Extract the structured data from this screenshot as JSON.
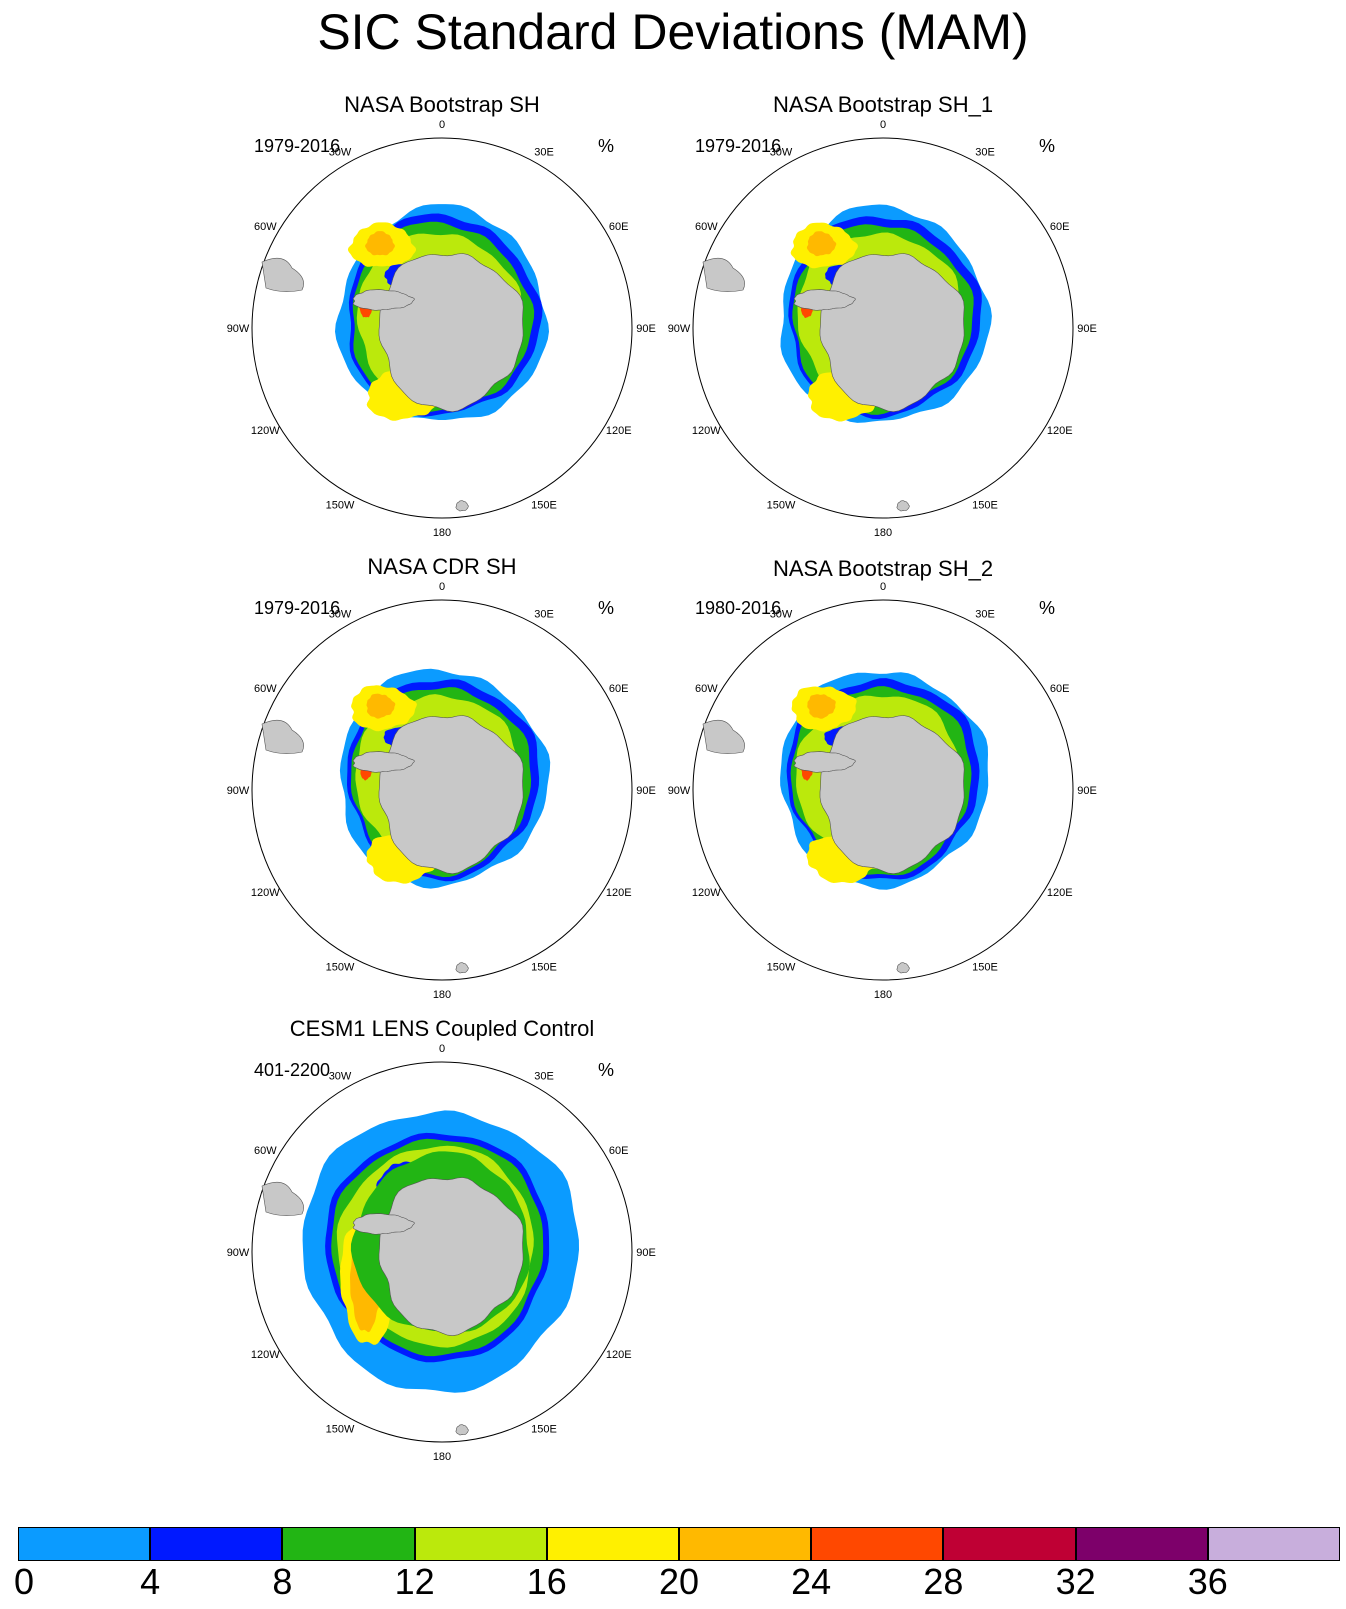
{
  "title": "SIC Standard Deviations (MAM)",
  "units": "%",
  "longitude_labels": [
    "0",
    "30E",
    "60E",
    "90E",
    "120E",
    "150E",
    "180",
    "150W",
    "120W",
    "90W",
    "60W",
    "30W"
  ],
  "panels": [
    {
      "title": "NASA Bootstrap SH",
      "period": "1979-2016",
      "variant": "obs"
    },
    {
      "title": "NASA Bootstrap SH_1",
      "period": "1979-2016",
      "variant": "obs"
    },
    {
      "title": "NASA CDR SH",
      "period": "1979-2016",
      "variant": "obs"
    },
    {
      "title": "NASA Bootstrap SH_2",
      "period": "1980-2016",
      "variant": "obs"
    },
    {
      "title": "CESM1 LENS Coupled Control",
      "period": "401-2200",
      "variant": "model"
    }
  ],
  "colorbar": {
    "labels": [
      "0",
      "4",
      "8",
      "12",
      "16",
      "20",
      "24",
      "28",
      "32",
      "36"
    ],
    "colors": [
      "#0b9bff",
      "#0019ff",
      "#22b514",
      "#bbe90c",
      "#fff000",
      "#ffb900",
      "#ff4800",
      "#bf0034",
      "#7d006a",
      "#c8aedc"
    ]
  },
  "land_color": "#c8c8c8"
}
